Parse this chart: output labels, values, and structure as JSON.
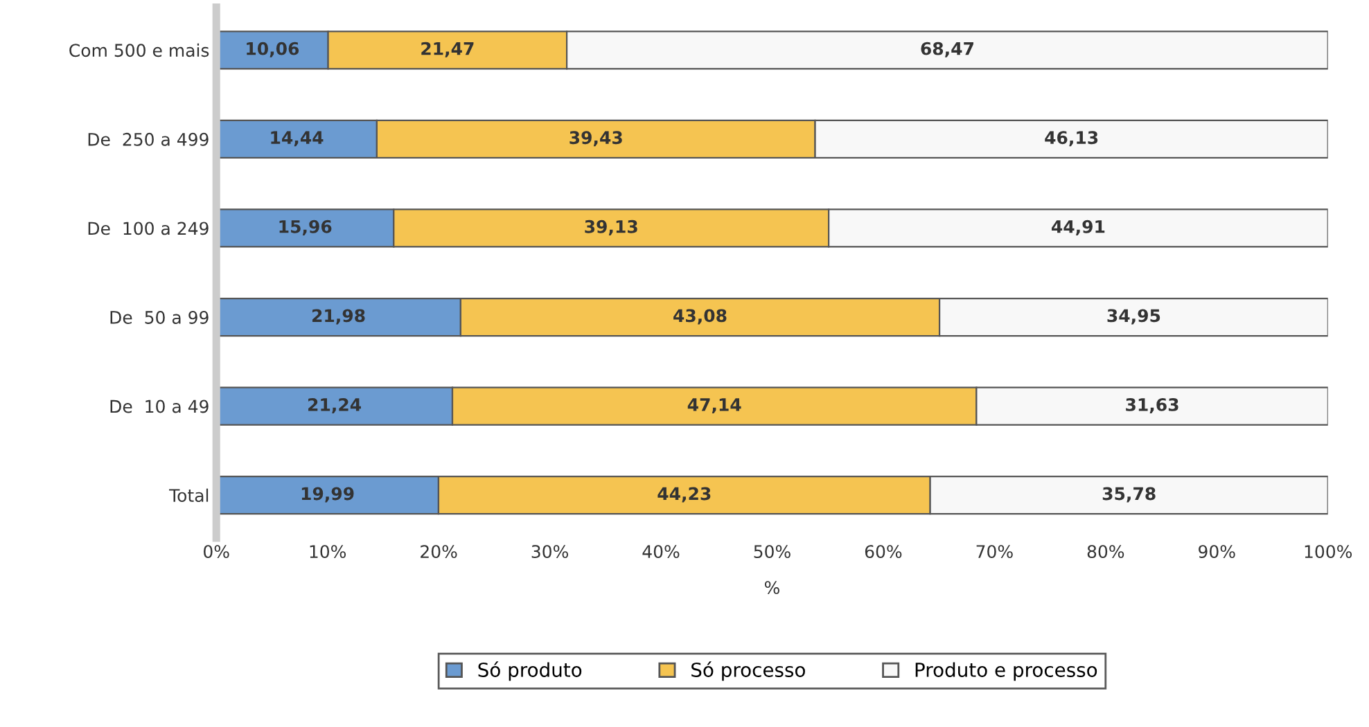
{
  "chart_data": {
    "type": "bar",
    "orientation": "horizontal",
    "stacked": true,
    "xlabel": "%",
    "categories": [
      "Com 500 e mais",
      "De  250 a 499",
      "De  100 a 249",
      "De  50 a 99",
      "De  10 a 49",
      "Total"
    ],
    "series": [
      {
        "name": "Só produto",
        "color": "#6b9bd1",
        "values": [
          10.06,
          14.44,
          15.96,
          21.98,
          21.24,
          19.99
        ],
        "value_labels": [
          "10,06",
          "14,44",
          "15,96",
          "21,98",
          "21,24",
          "19,99"
        ]
      },
      {
        "name": "Só processo",
        "color": "#f5c451",
        "values": [
          21.47,
          39.43,
          39.13,
          43.08,
          47.14,
          44.23
        ],
        "value_labels": [
          "21,47",
          "39,43",
          "39,13",
          "43,08",
          "47,14",
          "44,23"
        ]
      },
      {
        "name": "Produto e processo",
        "color": "#f8f8f8",
        "values": [
          68.47,
          46.13,
          44.91,
          34.95,
          31.63,
          35.78
        ],
        "value_labels": [
          "68,47",
          "46,13",
          "44,91",
          "34,95",
          "31,63",
          "35,78"
        ]
      }
    ],
    "xlim": [
      0,
      100
    ],
    "xticks": [
      {
        "value": 0,
        "label": "0%"
      },
      {
        "value": 10,
        "label": "10%"
      },
      {
        "value": 20,
        "label": "20%"
      },
      {
        "value": 30,
        "label": "30%"
      },
      {
        "value": 40,
        "label": "40%"
      },
      {
        "value": 50,
        "label": "50%"
      },
      {
        "value": 60,
        "label": "60%"
      },
      {
        "value": 70,
        "label": "70%"
      },
      {
        "value": 80,
        "label": "80%"
      },
      {
        "value": 90,
        "label": "90%"
      },
      {
        "value": 100,
        "label": "100%"
      }
    ],
    "grid": false,
    "legend": "bottom"
  }
}
